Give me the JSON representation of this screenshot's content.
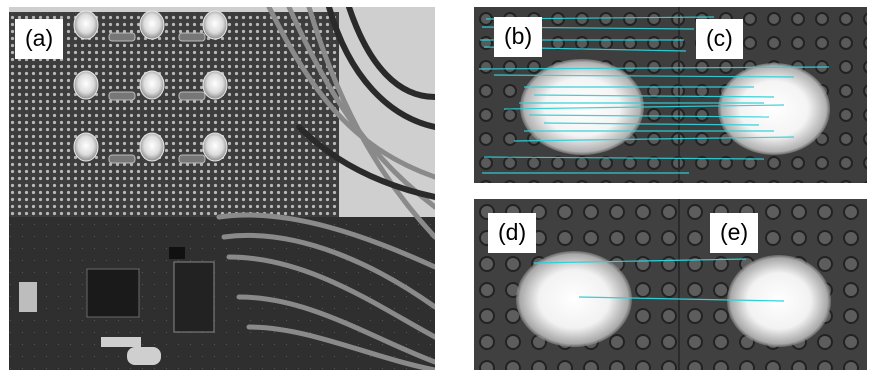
{
  "panels": {
    "a": {
      "label": "(a)"
    },
    "b": {
      "label": "(b)"
    },
    "c": {
      "label": "(c)"
    },
    "d": {
      "label": "(d)"
    },
    "e": {
      "label": "(e)"
    }
  },
  "colors": {
    "match_line": "#2fd0d8",
    "led_glow": "#ffffff",
    "board": "#3a3a3a",
    "label_bg": "#ffffff"
  }
}
